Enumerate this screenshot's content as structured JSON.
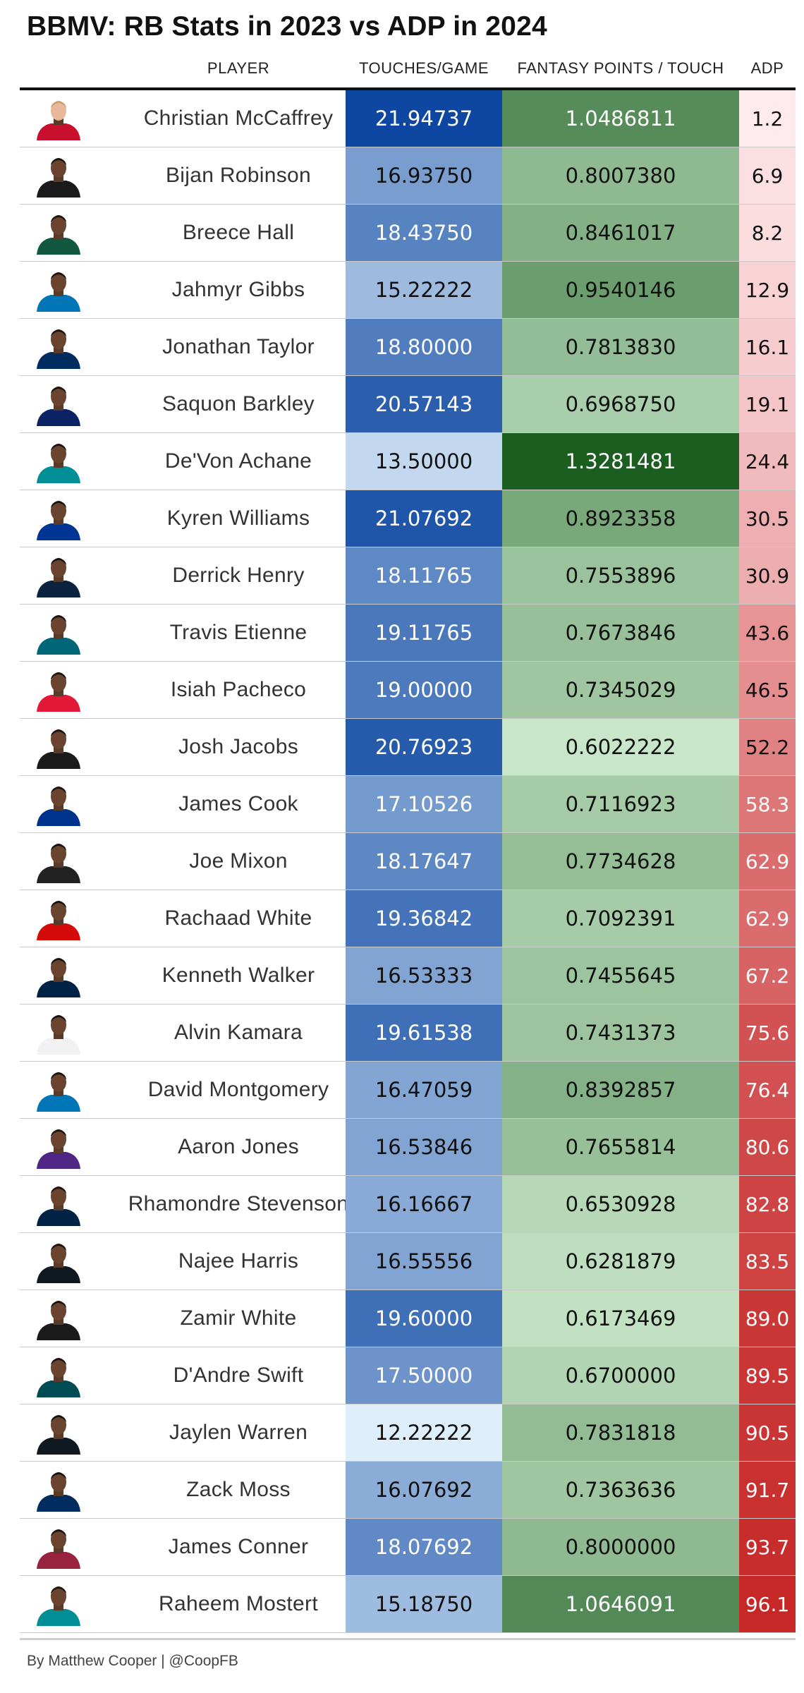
{
  "title": "BBMV: RB Stats in 2023 vs ADP in 2024",
  "columns": {
    "player": "PLAYER",
    "touches": "TOUCHES/GAME",
    "fantasy": "FANTASY POINTS / TOUCH",
    "adp": "ADP"
  },
  "footer": "By Matthew Cooper | @CoopFB",
  "colors": {
    "touches_low": "#deeefb",
    "touches_high": "#0d47a1",
    "fantasy_low": "#c8e6c9",
    "fantasy_high": "#1b5e20",
    "adp_low": "#ffebee",
    "adp_high": "#c62828"
  },
  "chart_data": {
    "type": "table",
    "title": "BBMV: RB Stats in 2023 vs ADP in 2024",
    "columns": [
      "PLAYER",
      "TOUCHES/GAME",
      "FANTASY POINTS / TOUCH",
      "ADP"
    ],
    "rows": [
      {
        "player": "Christian McCaffrey",
        "touches": "21.94737",
        "fp": "1.0486811",
        "adp": "1.2",
        "jersey": "#c8102e"
      },
      {
        "player": "Bijan Robinson",
        "touches": "16.93750",
        "fp": "0.8007380",
        "adp": "6.9",
        "jersey": "#1a1a1a"
      },
      {
        "player": "Breece Hall",
        "touches": "18.43750",
        "fp": "0.8461017",
        "adp": "8.2",
        "jersey": "#125740"
      },
      {
        "player": "Jahmyr Gibbs",
        "touches": "15.22222",
        "fp": "0.9540146",
        "adp": "12.9",
        "jersey": "#0076b6"
      },
      {
        "player": "Jonathan Taylor",
        "touches": "18.80000",
        "fp": "0.7813830",
        "adp": "16.1",
        "jersey": "#002c5f"
      },
      {
        "player": "Saquon Barkley",
        "touches": "20.57143",
        "fp": "0.6968750",
        "adp": "19.1",
        "jersey": "#0b2265"
      },
      {
        "player": "De'Von Achane",
        "touches": "13.50000",
        "fp": "1.3281481",
        "adp": "24.4",
        "jersey": "#008e97"
      },
      {
        "player": "Kyren Williams",
        "touches": "21.07692",
        "fp": "0.8923358",
        "adp": "30.5",
        "jersey": "#003594"
      },
      {
        "player": "Derrick Henry",
        "touches": "18.11765",
        "fp": "0.7553896",
        "adp": "30.9",
        "jersey": "#0c2340"
      },
      {
        "player": "Travis Etienne",
        "touches": "19.11765",
        "fp": "0.7673846",
        "adp": "43.6",
        "jersey": "#006778"
      },
      {
        "player": "Isiah Pacheco",
        "touches": "19.00000",
        "fp": "0.7345029",
        "adp": "46.5",
        "jersey": "#e31837"
      },
      {
        "player": "Josh Jacobs",
        "touches": "20.76923",
        "fp": "0.6022222",
        "adp": "52.2",
        "jersey": "#1a1a1a"
      },
      {
        "player": "James Cook",
        "touches": "17.10526",
        "fp": "0.7116923",
        "adp": "58.3",
        "jersey": "#00338d"
      },
      {
        "player": "Joe Mixon",
        "touches": "18.17647",
        "fp": "0.7734628",
        "adp": "62.9",
        "jersey": "#222222"
      },
      {
        "player": "Rachaad White",
        "touches": "19.36842",
        "fp": "0.7092391",
        "adp": "62.9",
        "jersey": "#d50a0a"
      },
      {
        "player": "Kenneth Walker",
        "touches": "16.53333",
        "fp": "0.7455645",
        "adp": "67.2",
        "jersey": "#002244"
      },
      {
        "player": "Alvin Kamara",
        "touches": "19.61538",
        "fp": "0.7431373",
        "adp": "75.6",
        "jersey": "#f2f2f2"
      },
      {
        "player": "David Montgomery",
        "touches": "16.47059",
        "fp": "0.8392857",
        "adp": "76.4",
        "jersey": "#0076b6"
      },
      {
        "player": "Aaron Jones",
        "touches": "16.53846",
        "fp": "0.7655814",
        "adp": "80.6",
        "jersey": "#4f2683"
      },
      {
        "player": "Rhamondre Stevenson",
        "touches": "16.16667",
        "fp": "0.6530928",
        "adp": "82.8",
        "jersey": "#002244"
      },
      {
        "player": "Najee Harris",
        "touches": "16.55556",
        "fp": "0.6281879",
        "adp": "83.5",
        "jersey": "#101820"
      },
      {
        "player": "Zamir White",
        "touches": "19.60000",
        "fp": "0.6173469",
        "adp": "89.0",
        "jersey": "#1a1a1a"
      },
      {
        "player": "D'Andre Swift",
        "touches": "17.50000",
        "fp": "0.6700000",
        "adp": "89.5",
        "jersey": "#004c54"
      },
      {
        "player": "Jaylen Warren",
        "touches": "12.22222",
        "fp": "0.7831818",
        "adp": "90.5",
        "jersey": "#101820"
      },
      {
        "player": "Zack Moss",
        "touches": "16.07692",
        "fp": "0.7363636",
        "adp": "91.7",
        "jersey": "#002c5f"
      },
      {
        "player": "James Conner",
        "touches": "18.07692",
        "fp": "0.8000000",
        "adp": "93.7",
        "jersey": "#97233f"
      },
      {
        "player": "Raheem Mostert",
        "touches": "15.18750",
        "fp": "1.0646091",
        "adp": "96.1",
        "jersey": "#008e97"
      }
    ]
  }
}
